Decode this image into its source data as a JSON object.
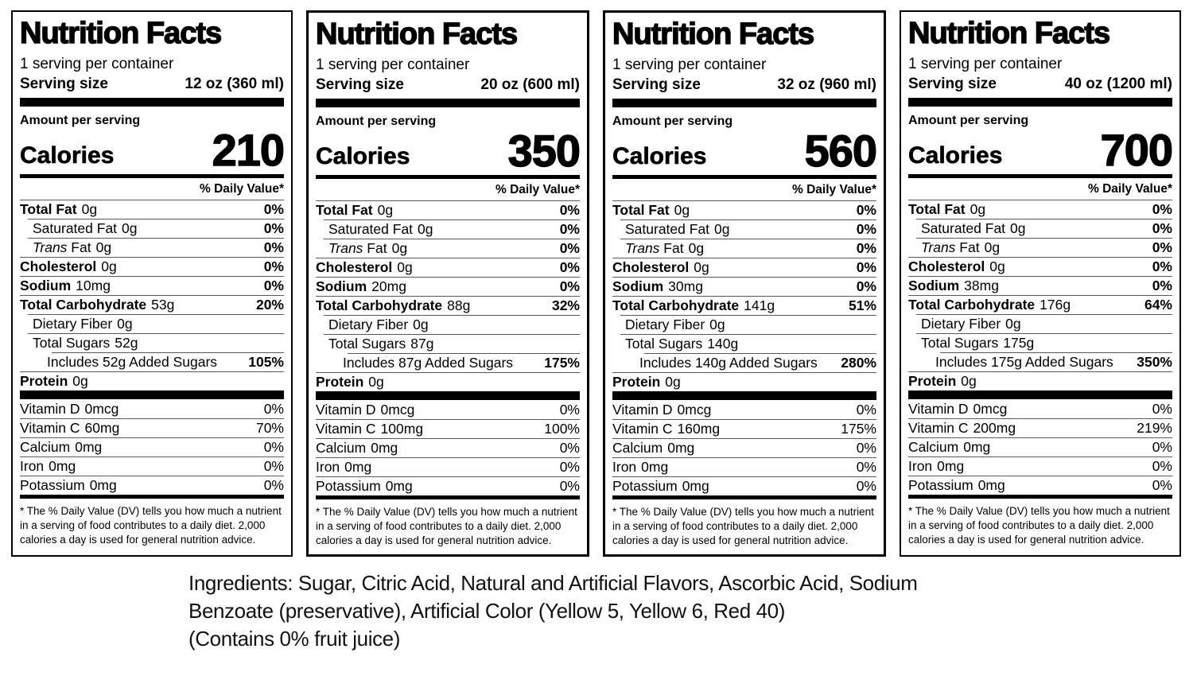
{
  "labels": [
    {
      "title": "Nutrition Facts",
      "servings_per_container": "1 serving per container",
      "serving_size_label": "Serving size",
      "serving_size": "12 oz (360 ml)",
      "amount_per_serving": "Amount per serving",
      "calories_label": "Calories",
      "calories": "210",
      "daily_value_header": "% Daily Value*",
      "nutrients": [
        {
          "italic": "",
          "name": "Total Fat",
          "amount": "0g",
          "dv": "0%",
          "style": "main"
        },
        {
          "italic": "",
          "name": "Saturated Fat",
          "amount": "0g",
          "dv": "0%",
          "style": "sub"
        },
        {
          "italic": "Trans",
          "name": " Fat",
          "amount": "0g",
          "dv": "0%",
          "style": "sub"
        },
        {
          "italic": "",
          "name": "Cholesterol",
          "amount": "0g",
          "dv": "0%",
          "style": "main"
        },
        {
          "italic": "",
          "name": "Sodium",
          "amount": "10mg",
          "dv": "0%",
          "style": "main"
        },
        {
          "italic": "",
          "name": "Total Carbohydrate",
          "amount": "53g",
          "dv": "20%",
          "style": "main"
        },
        {
          "italic": "",
          "name": "Dietary Fiber",
          "amount": "0g",
          "dv": "",
          "style": "sub"
        },
        {
          "italic": "",
          "name": "Total Sugars",
          "amount": "52g",
          "dv": "",
          "style": "sub"
        },
        {
          "italic": "",
          "name": "Includes 52g Added Sugars",
          "amount": "",
          "dv": "105%",
          "style": "sub2"
        },
        {
          "italic": "",
          "name": "Protein",
          "amount": "0g",
          "dv": "",
          "style": "main"
        }
      ],
      "vitamins": [
        {
          "italic": "",
          "name": "Vitamin D",
          "amount": "0mcg",
          "dv": "0%",
          "style": "vit"
        },
        {
          "italic": "",
          "name": "Vitamin C",
          "amount": "60mg",
          "dv": "70%",
          "style": "vit"
        },
        {
          "italic": "",
          "name": "Calcium",
          "amount": "0mg",
          "dv": "0%",
          "style": "vit"
        },
        {
          "italic": "",
          "name": "Iron",
          "amount": "0mg",
          "dv": "0%",
          "style": "vit"
        },
        {
          "italic": "",
          "name": "Potassium",
          "amount": "0mg",
          "dv": "0%",
          "style": "vit"
        }
      ],
      "footnote": "* The % Daily Value (DV) tells you how much a nutrient in a serving of food contributes to a daily diet. 2,000 calories a day is used for general nutrition advice."
    },
    {
      "title": "Nutrition Facts",
      "servings_per_container": "1 serving per container",
      "serving_size_label": "Serving size",
      "serving_size": "20 oz (600 ml)",
      "amount_per_serving": "Amount per serving",
      "calories_label": "Calories",
      "calories": "350",
      "daily_value_header": "% Daily Value*",
      "nutrients": [
        {
          "italic": "",
          "name": "Total Fat",
          "amount": "0g",
          "dv": "0%",
          "style": "main"
        },
        {
          "italic": "",
          "name": "Saturated Fat",
          "amount": "0g",
          "dv": "0%",
          "style": "sub"
        },
        {
          "italic": "Trans",
          "name": " Fat",
          "amount": "0g",
          "dv": "0%",
          "style": "sub"
        },
        {
          "italic": "",
          "name": "Cholesterol",
          "amount": "0g",
          "dv": "0%",
          "style": "main"
        },
        {
          "italic": "",
          "name": "Sodium",
          "amount": "20mg",
          "dv": "0%",
          "style": "main"
        },
        {
          "italic": "",
          "name": "Total Carbohydrate",
          "amount": "88g",
          "dv": "32%",
          "style": "main"
        },
        {
          "italic": "",
          "name": "Dietary Fiber",
          "amount": "0g",
          "dv": "",
          "style": "sub"
        },
        {
          "italic": "",
          "name": "Total Sugars",
          "amount": "87g",
          "dv": "",
          "style": "sub"
        },
        {
          "italic": "",
          "name": "Includes 87g Added Sugars",
          "amount": "",
          "dv": "175%",
          "style": "sub2"
        },
        {
          "italic": "",
          "name": "Protein",
          "amount": "0g",
          "dv": "",
          "style": "main"
        }
      ],
      "vitamins": [
        {
          "italic": "",
          "name": "Vitamin D",
          "amount": "0mcg",
          "dv": "0%",
          "style": "vit"
        },
        {
          "italic": "",
          "name": "Vitamin C",
          "amount": "100mg",
          "dv": "100%",
          "style": "vit"
        },
        {
          "italic": "",
          "name": "Calcium",
          "amount": "0mg",
          "dv": "0%",
          "style": "vit"
        },
        {
          "italic": "",
          "name": "Iron",
          "amount": "0mg",
          "dv": "0%",
          "style": "vit"
        },
        {
          "italic": "",
          "name": "Potassium",
          "amount": "0mg",
          "dv": "0%",
          "style": "vit"
        }
      ],
      "footnote": "* The % Daily Value (DV) tells you how much a nutrient in a serving of food contributes to a daily diet. 2,000 calories a day is used for general nutrition advice."
    },
    {
      "title": "Nutrition Facts",
      "servings_per_container": "1 serving per container",
      "serving_size_label": "Serving size",
      "serving_size": "32 oz (960 ml)",
      "amount_per_serving": "Amount per serving",
      "calories_label": "Calories",
      "calories": "560",
      "daily_value_header": "% Daily Value*",
      "nutrients": [
        {
          "italic": "",
          "name": "Total Fat",
          "amount": "0g",
          "dv": "0%",
          "style": "main"
        },
        {
          "italic": "",
          "name": "Saturated Fat",
          "amount": "0g",
          "dv": "0%",
          "style": "sub"
        },
        {
          "italic": "Trans",
          "name": " Fat",
          "amount": "0g",
          "dv": "0%",
          "style": "sub"
        },
        {
          "italic": "",
          "name": "Cholesterol",
          "amount": "0g",
          "dv": "0%",
          "style": "main"
        },
        {
          "italic": "",
          "name": "Sodium",
          "amount": "30mg",
          "dv": "0%",
          "style": "main"
        },
        {
          "italic": "",
          "name": "Total Carbohydrate",
          "amount": "141g",
          "dv": "51%",
          "style": "main"
        },
        {
          "italic": "",
          "name": "Dietary Fiber",
          "amount": "0g",
          "dv": "",
          "style": "sub"
        },
        {
          "italic": "",
          "name": "Total Sugars",
          "amount": "140g",
          "dv": "",
          "style": "sub"
        },
        {
          "italic": "",
          "name": "Includes 140g Added Sugars",
          "amount": "",
          "dv": "280%",
          "style": "sub2"
        },
        {
          "italic": "",
          "name": "Protein",
          "amount": "0g",
          "dv": "",
          "style": "main"
        }
      ],
      "vitamins": [
        {
          "italic": "",
          "name": "Vitamin D",
          "amount": "0mcg",
          "dv": "0%",
          "style": "vit"
        },
        {
          "italic": "",
          "name": "Vitamin C",
          "amount": "160mg",
          "dv": "175%",
          "style": "vit"
        },
        {
          "italic": "",
          "name": "Calcium",
          "amount": "0mg",
          "dv": "0%",
          "style": "vit"
        },
        {
          "italic": "",
          "name": "Iron",
          "amount": "0mg",
          "dv": "0%",
          "style": "vit"
        },
        {
          "italic": "",
          "name": "Potassium",
          "amount": "0mg",
          "dv": "0%",
          "style": "vit"
        }
      ],
      "footnote": "* The % Daily Value (DV) tells you how much a nutrient in a serving of food contributes to a daily diet. 2,000 calories a day is used for general nutrition advice."
    },
    {
      "title": "Nutrition Facts",
      "servings_per_container": "1 serving per container",
      "serving_size_label": "Serving size",
      "serving_size": "40 oz (1200 ml)",
      "amount_per_serving": "Amount per serving",
      "calories_label": "Calories",
      "calories": "700",
      "daily_value_header": "% Daily Value*",
      "nutrients": [
        {
          "italic": "",
          "name": "Total Fat",
          "amount": "0g",
          "dv": "0%",
          "style": "main"
        },
        {
          "italic": "",
          "name": "Saturated Fat",
          "amount": "0g",
          "dv": "0%",
          "style": "sub"
        },
        {
          "italic": "Trans",
          "name": " Fat",
          "amount": "0g",
          "dv": "0%",
          "style": "sub"
        },
        {
          "italic": "",
          "name": "Cholesterol",
          "amount": "0g",
          "dv": "0%",
          "style": "main"
        },
        {
          "italic": "",
          "name": "Sodium",
          "amount": "38mg",
          "dv": "0%",
          "style": "main"
        },
        {
          "italic": "",
          "name": "Total Carbohydrate",
          "amount": "176g",
          "dv": "64%",
          "style": "main"
        },
        {
          "italic": "",
          "name": "Dietary Fiber",
          "amount": "0g",
          "dv": "",
          "style": "sub"
        },
        {
          "italic": "",
          "name": "Total Sugars",
          "amount": "175g",
          "dv": "",
          "style": "sub"
        },
        {
          "italic": "",
          "name": "Includes 175g Added Sugars",
          "amount": "",
          "dv": "350%",
          "style": "sub2"
        },
        {
          "italic": "",
          "name": "Protein",
          "amount": "0g",
          "dv": "",
          "style": "main"
        }
      ],
      "vitamins": [
        {
          "italic": "",
          "name": "Vitamin D",
          "amount": "0mcg",
          "dv": "0%",
          "style": "vit"
        },
        {
          "italic": "",
          "name": "Vitamin C",
          "amount": "200mg",
          "dv": "219%",
          "style": "vit"
        },
        {
          "italic": "",
          "name": "Calcium",
          "amount": "0mg",
          "dv": "0%",
          "style": "vit"
        },
        {
          "italic": "",
          "name": "Iron",
          "amount": "0mg",
          "dv": "0%",
          "style": "vit"
        },
        {
          "italic": "",
          "name": "Potassium",
          "amount": "0mg",
          "dv": "0%",
          "style": "vit"
        }
      ],
      "footnote": "* The % Daily Value (DV) tells you how much a nutrient in a serving of food contributes to a daily diet. 2,000 calories a day is used for general nutrition advice."
    }
  ],
  "ingredients": {
    "lines": [
      "Ingredients: Sugar, Citric Acid, Natural and Artificial Flavors, Ascorbic Acid, Sodium",
      "Benzoate (preservative), Artificial Color (Yellow 5, Yellow 6, Red 40)",
      "(Contains 0% fruit juice)"
    ]
  }
}
